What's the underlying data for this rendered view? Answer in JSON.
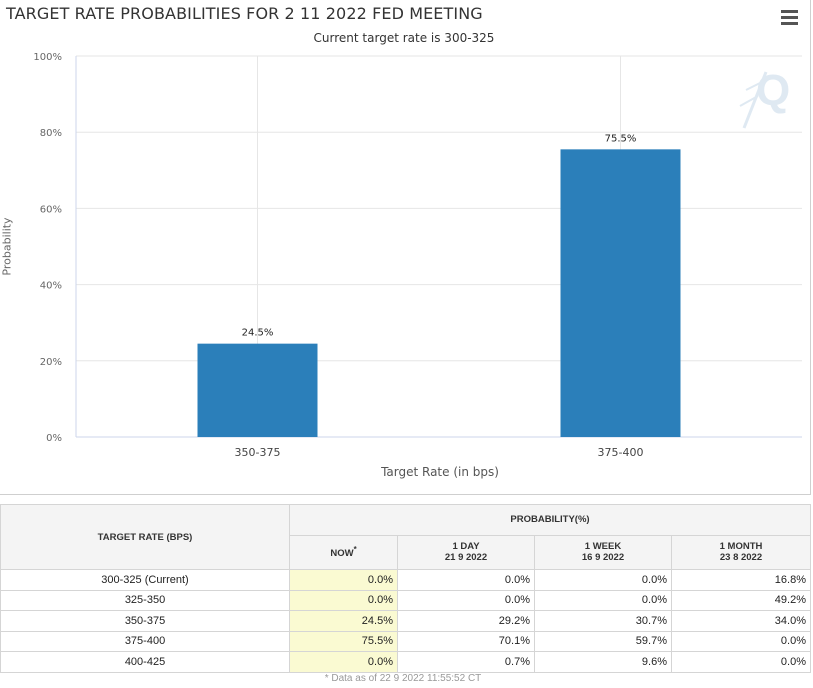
{
  "chart_data": {
    "type": "bar",
    "title": "TARGET RATE PROBABILITIES FOR 2 11 2022 FED MEETING",
    "subtitle": "Current target rate is 300-325",
    "categories": [
      "350-375",
      "375-400"
    ],
    "values": [
      24.5,
      75.5
    ],
    "data_labels": [
      "24.5%",
      "75.5%"
    ],
    "xlabel": "Target Rate (in bps)",
    "ylabel": "Probability",
    "ylim": [
      0,
      100
    ],
    "yticks": [
      "0%",
      "20%",
      "40%",
      "60%",
      "80%",
      "100%"
    ],
    "ytick_values": [
      0,
      20,
      40,
      60,
      80,
      100
    ],
    "bar_color": "#2b7fba"
  },
  "logo_text": "Q",
  "table": {
    "header_target": "TARGET RATE (BPS)",
    "header_probability": "PROBABILITY(%)",
    "col_now": "NOW",
    "col_now_mark": "*",
    "col_1day": "1 DAY",
    "col_1day_date": "21 9 2022",
    "col_1week": "1 WEEK",
    "col_1week_date": "16 9 2022",
    "col_1month": "1 MONTH",
    "col_1month_date": "23 8 2022",
    "rows": [
      {
        "rate": "300-325 (Current)",
        "now": "0.0%",
        "d1": "0.0%",
        "w1": "0.0%",
        "m1": "16.8%"
      },
      {
        "rate": "325-350",
        "now": "0.0%",
        "d1": "0.0%",
        "w1": "0.0%",
        "m1": "49.2%"
      },
      {
        "rate": "350-375",
        "now": "24.5%",
        "d1": "29.2%",
        "w1": "30.7%",
        "m1": "34.0%"
      },
      {
        "rate": "375-400",
        "now": "75.5%",
        "d1": "70.1%",
        "w1": "59.7%",
        "m1": "0.0%"
      },
      {
        "rate": "400-425",
        "now": "0.0%",
        "d1": "0.7%",
        "w1": "9.6%",
        "m1": "0.0%"
      }
    ],
    "footnote": "* Data as of 22 9 2022 11:55:52 CT"
  }
}
